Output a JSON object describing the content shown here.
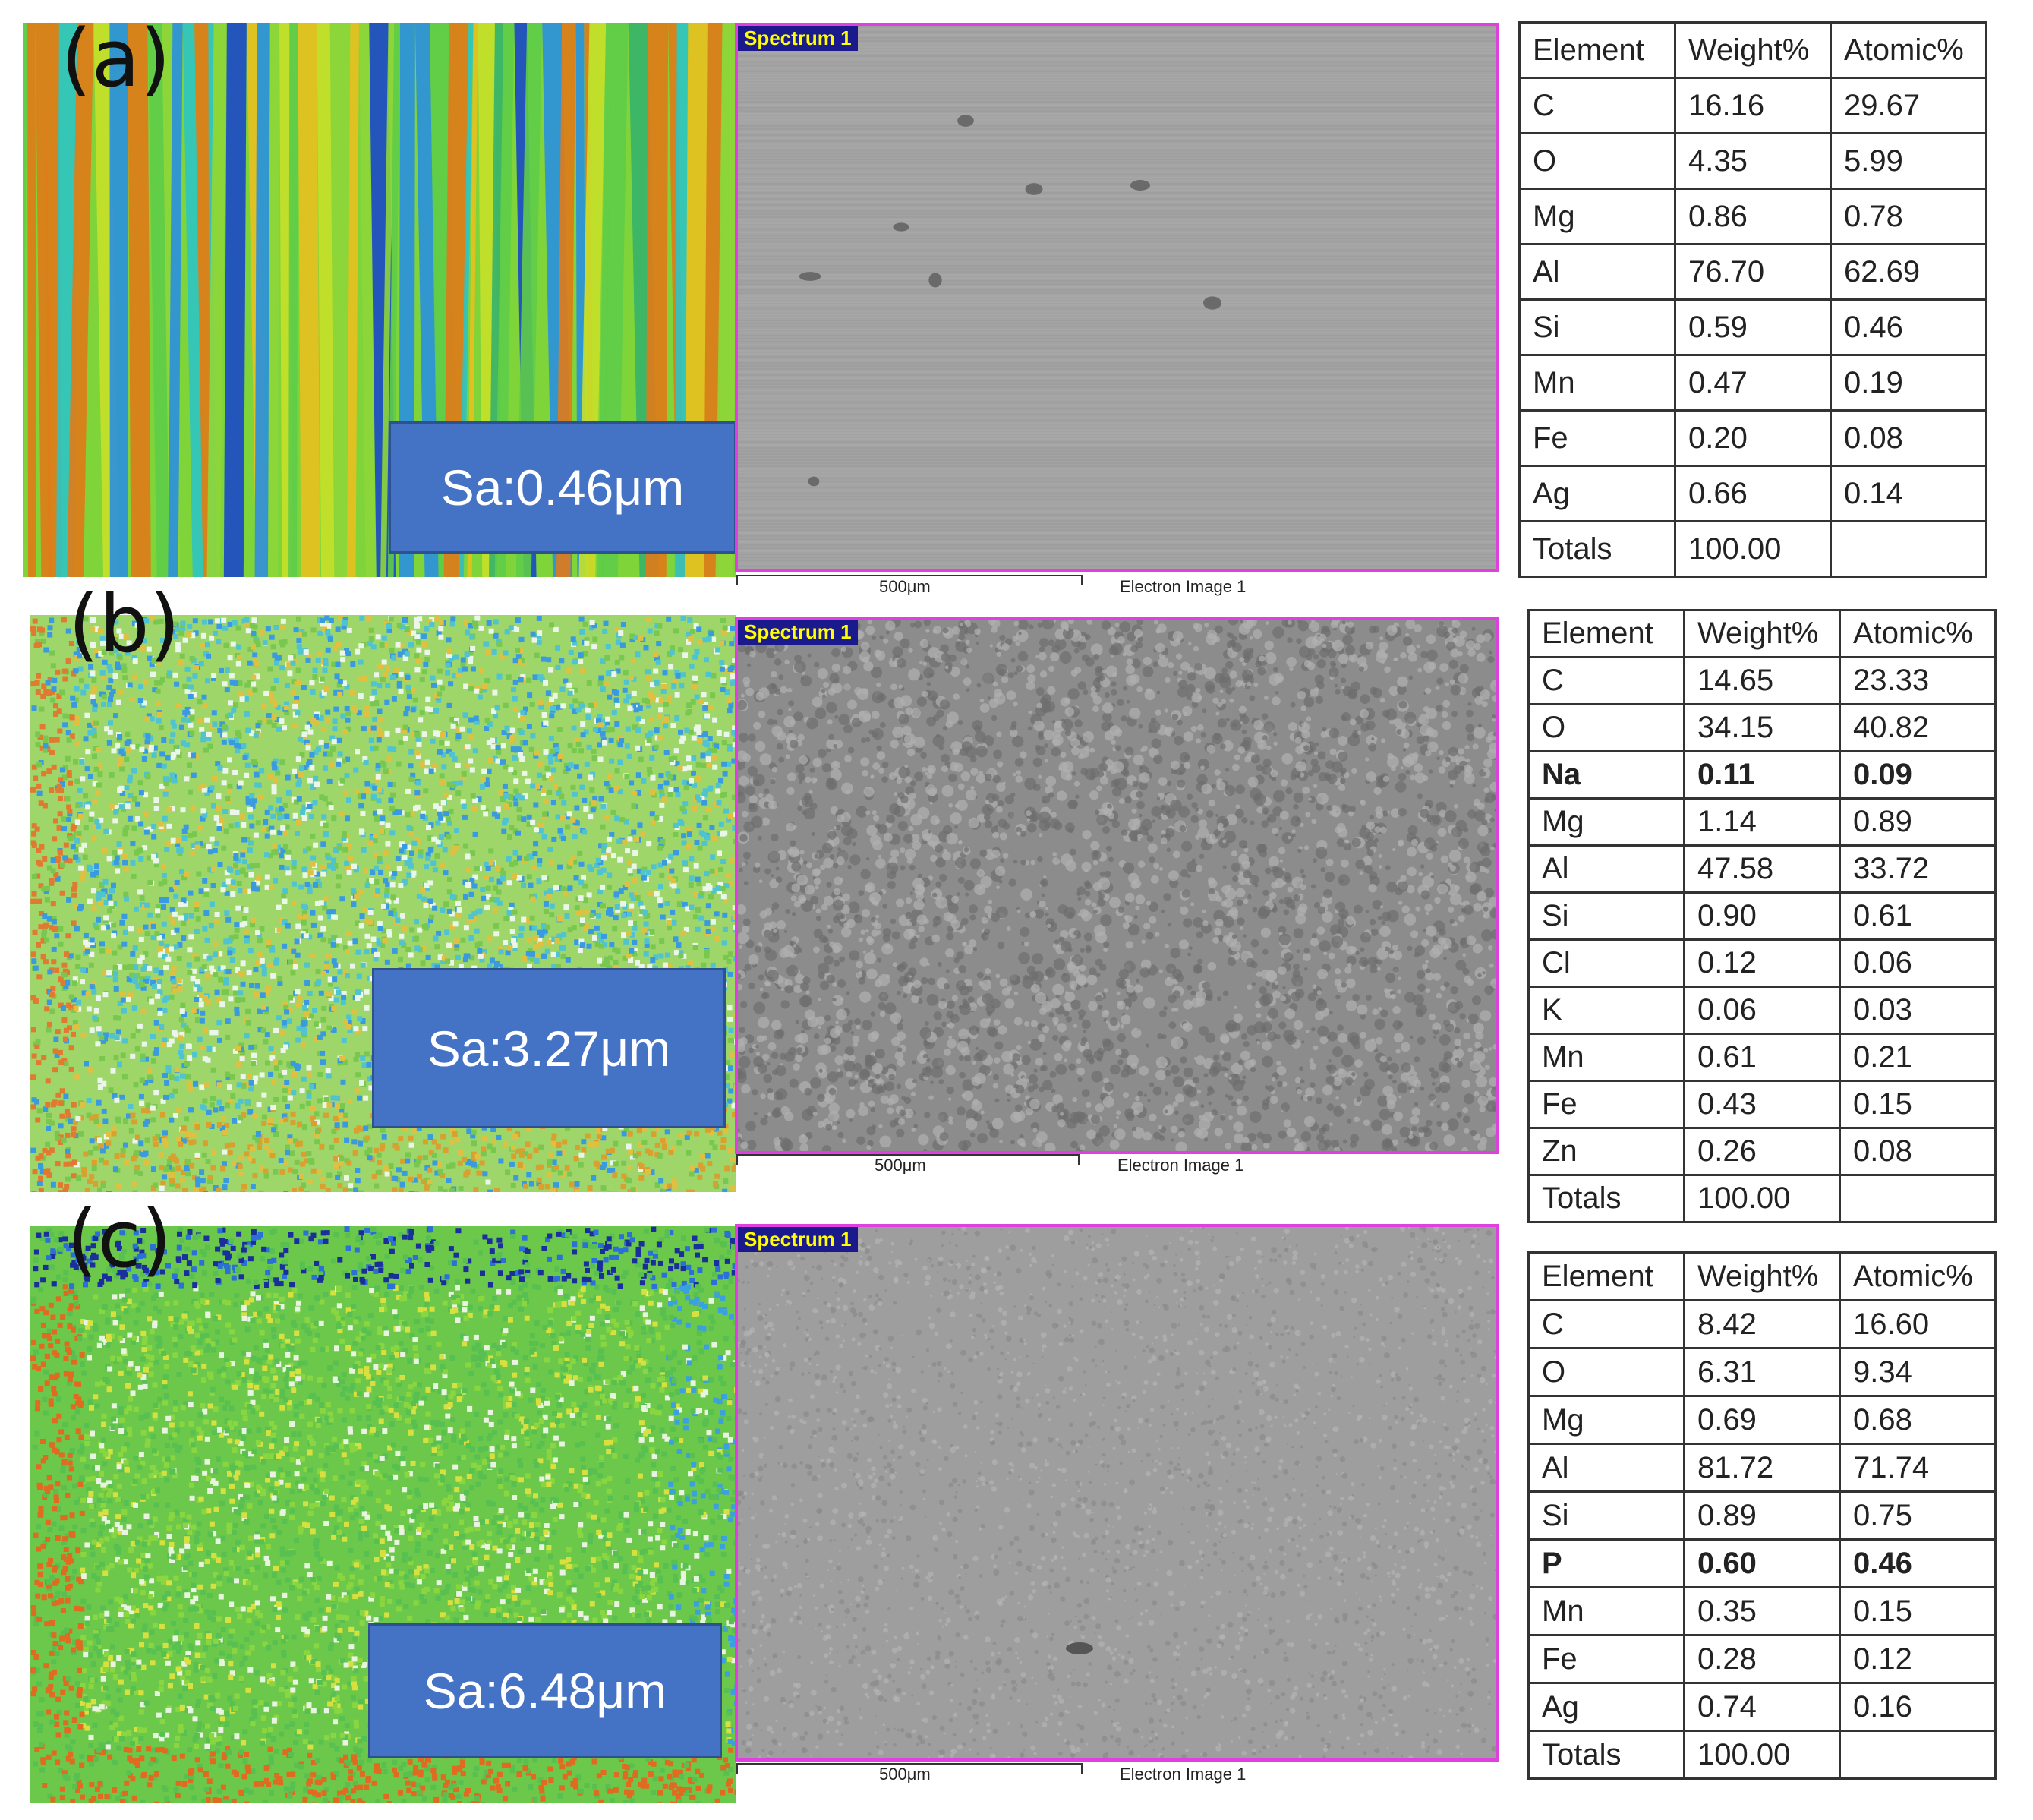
{
  "panels": [
    {
      "letter": "(a)",
      "sa_label": "Sa:0.46μm",
      "spectrum_tag": "Spectrum 1",
      "scale_label": "500μm",
      "image_label": "Electron Image 1",
      "table": {
        "headers": [
          "Element",
          "Weight%",
          "Atomic%"
        ],
        "rows": [
          [
            "C",
            "16.16",
            "29.67"
          ],
          [
            "O",
            "4.35",
            "5.99"
          ],
          [
            "Mg",
            "0.86",
            "0.78"
          ],
          [
            "Al",
            "76.70",
            "62.69"
          ],
          [
            "Si",
            "0.59",
            "0.46"
          ],
          [
            "Mn",
            "0.47",
            "0.19"
          ],
          [
            "Fe",
            "0.20",
            "0.08"
          ],
          [
            "Ag",
            "0.66",
            "0.14"
          ],
          [
            "Totals",
            "100.00",
            ""
          ]
        ],
        "bold_rows": []
      }
    },
    {
      "letter": "(b)",
      "sa_label": "Sa:3.27μm",
      "spectrum_tag": "Spectrum 1",
      "scale_label": "500μm",
      "image_label": "Electron Image 1",
      "table": {
        "headers": [
          "Element",
          "Weight%",
          "Atomic%"
        ],
        "rows": [
          [
            "C",
            "14.65",
            "23.33"
          ],
          [
            "O",
            "34.15",
            "40.82"
          ],
          [
            "Na",
            "0.11",
            "0.09"
          ],
          [
            "Mg",
            "1.14",
            "0.89"
          ],
          [
            "Al",
            "47.58",
            "33.72"
          ],
          [
            "Si",
            "0.90",
            "0.61"
          ],
          [
            "Cl",
            "0.12",
            "0.06"
          ],
          [
            "K",
            "0.06",
            "0.03"
          ],
          [
            "Mn",
            "0.61",
            "0.21"
          ],
          [
            "Fe",
            "0.43",
            "0.15"
          ],
          [
            "Zn",
            "0.26",
            "0.08"
          ],
          [
            "Totals",
            "100.00",
            ""
          ]
        ],
        "bold_rows": [
          2
        ]
      }
    },
    {
      "letter": "(c)",
      "sa_label": "Sa:6.48μm",
      "spectrum_tag": "Spectrum 1",
      "scale_label": "500μm",
      "image_label": "Electron Image 1",
      "table": {
        "headers": [
          "Element",
          "Weight%",
          "Atomic%"
        ],
        "rows": [
          [
            "C",
            "8.42",
            "16.60"
          ],
          [
            "O",
            "6.31",
            "9.34"
          ],
          [
            "Mg",
            "0.69",
            "0.68"
          ],
          [
            "Al",
            "81.72",
            "71.74"
          ],
          [
            "Si",
            "0.89",
            "0.75"
          ],
          [
            "P",
            "0.60",
            "0.46"
          ],
          [
            "Mn",
            "0.35",
            "0.15"
          ],
          [
            "Fe",
            "0.28",
            "0.12"
          ],
          [
            "Ag",
            "0.74",
            "0.16"
          ],
          [
            "Totals",
            "100.00",
            ""
          ]
        ],
        "bold_rows": [
          5
        ]
      }
    }
  ]
}
